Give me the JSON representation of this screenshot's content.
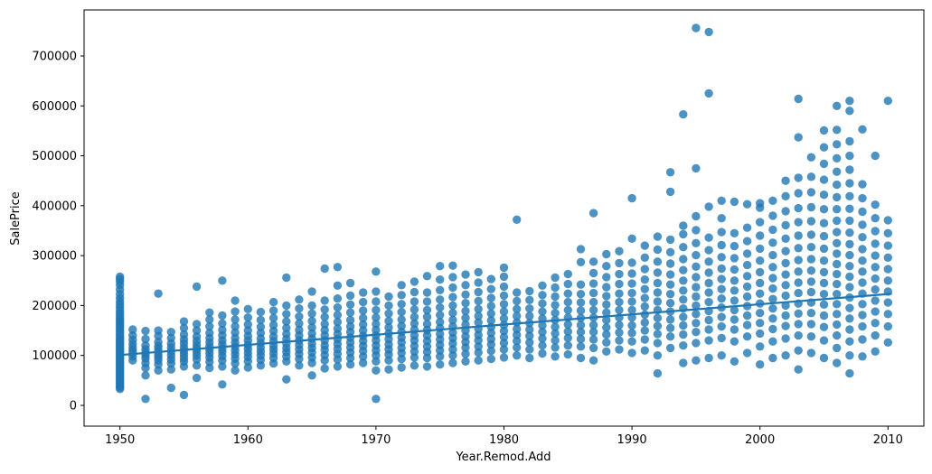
{
  "chart_data": {
    "type": "scatter",
    "xlabel": "Year.Remod.Add",
    "ylabel": "SalePrice",
    "x_ticks": [
      1950,
      1960,
      1970,
      1980,
      1990,
      2000,
      2010
    ],
    "y_ticks": [
      0,
      100000,
      200000,
      300000,
      400000,
      500000,
      600000,
      700000
    ],
    "x_lim": [
      1947.2,
      2012.8
    ],
    "y_lim": [
      -41600,
      792200
    ],
    "grid": false,
    "legend": "none",
    "marker_color": "#1f77b4",
    "marker_alpha": 0.8,
    "line_color": "#1f77b4",
    "y_scale": 1000,
    "regression_line": {
      "x1": 1950,
      "y1": 101000,
      "x2": 2010.3,
      "y2": 223500
    },
    "points_by_year": [
      {
        "year": 1950,
        "prices_k": [
          33,
          36,
          39,
          42,
          45,
          48,
          51,
          54,
          57,
          60,
          63,
          66,
          69,
          72,
          75,
          78,
          81,
          84,
          87,
          90,
          93,
          96,
          99,
          102,
          105,
          108,
          111,
          114,
          117,
          120,
          123,
          126,
          129,
          132,
          135,
          139,
          143,
          147,
          151,
          155,
          159,
          163,
          167,
          171,
          175,
          180,
          185,
          190,
          196,
          202,
          208,
          215,
          223,
          232,
          241,
          248,
          253,
          258
        ]
      },
      {
        "year": 1951,
        "prices_k": [
          90,
          98,
          105,
          110,
          116,
          123,
          131,
          140,
          152
        ]
      },
      {
        "year": 1952,
        "prices_k": [
          13,
          60,
          75,
          85,
          94,
          100,
          106,
          112,
          120,
          133,
          149
        ]
      },
      {
        "year": 1953,
        "prices_k": [
          70,
          82,
          90,
          96,
          101,
          107,
          113,
          119,
          127,
          139,
          150,
          224
        ]
      },
      {
        "year": 1954,
        "prices_k": [
          35,
          72,
          84,
          92,
          100,
          108,
          116,
          124,
          135,
          147
        ]
      },
      {
        "year": 1955,
        "prices_k": [
          21,
          78,
          88,
          95,
          102,
          109,
          116,
          124,
          132,
          142,
          155,
          168
        ]
      },
      {
        "year": 1956,
        "prices_k": [
          55,
          80,
          92,
          100,
          107,
          114,
          121,
          129,
          138,
          150,
          163,
          238
        ]
      },
      {
        "year": 1957,
        "prices_k": [
          75,
          87,
          96,
          104,
          111,
          118,
          126,
          135,
          145,
          158,
          172,
          186
        ]
      },
      {
        "year": 1958,
        "prices_k": [
          42,
          78,
          90,
          99,
          107,
          114,
          122,
          130,
          140,
          151,
          164,
          180,
          250
        ]
      },
      {
        "year": 1959,
        "prices_k": [
          70,
          84,
          94,
          102,
          110,
          118,
          126,
          135,
          146,
          158,
          172,
          188,
          210
        ]
      },
      {
        "year": 1960,
        "prices_k": [
          76,
          88,
          97,
          105,
          113,
          121,
          130,
          139,
          150,
          162,
          176,
          193
        ]
      },
      {
        "year": 1961,
        "prices_k": [
          80,
          91,
          100,
          108,
          116,
          125,
          134,
          145,
          157,
          171,
          187
        ]
      },
      {
        "year": 1962,
        "prices_k": [
          84,
          95,
          104,
          112,
          120,
          129,
          138,
          149,
          161,
          175,
          190,
          207
        ]
      },
      {
        "year": 1963,
        "prices_k": [
          52,
          88,
          98,
          107,
          115,
          124,
          133,
          143,
          155,
          168,
          183,
          200,
          256
        ]
      },
      {
        "year": 1964,
        "prices_k": [
          80,
          93,
          103,
          112,
          121,
          130,
          140,
          151,
          164,
          178,
          194,
          212
        ]
      },
      {
        "year": 1965,
        "prices_k": [
          60,
          85,
          96,
          106,
          115,
          124,
          134,
          144,
          156,
          169,
          184,
          200,
          228
        ]
      },
      {
        "year": 1966,
        "prices_k": [
          74,
          90,
          101,
          111,
          120,
          130,
          140,
          151,
          163,
          177,
          192,
          210,
          274
        ]
      },
      {
        "year": 1967,
        "prices_k": [
          78,
          92,
          103,
          113,
          123,
          133,
          143,
          154,
          167,
          181,
          196,
          214,
          240,
          277
        ]
      },
      {
        "year": 1968,
        "prices_k": [
          82,
          95,
          106,
          116,
          126,
          136,
          147,
          158,
          171,
          186,
          202,
          220,
          245
        ]
      },
      {
        "year": 1969,
        "prices_k": [
          85,
          98,
          109,
          119,
          129,
          139,
          150,
          162,
          175,
          190,
          207,
          226
        ]
      },
      {
        "year": 1970,
        "prices_k": [
          13,
          70,
          88,
          100,
          110,
          120,
          130,
          140,
          151,
          163,
          176,
          191,
          208,
          228,
          268
        ]
      },
      {
        "year": 1971,
        "prices_k": [
          72,
          90,
          102,
          112,
          122,
          133,
          144,
          156,
          169,
          184,
          200,
          218
        ]
      },
      {
        "year": 1972,
        "prices_k": [
          76,
          93,
          105,
          115,
          126,
          136,
          147,
          159,
          172,
          187,
          203,
          221,
          241
        ]
      },
      {
        "year": 1973,
        "prices_k": [
          80,
          96,
          108,
          119,
          130,
          140,
          152,
          164,
          177,
          192,
          208,
          227,
          248
        ]
      },
      {
        "year": 1974,
        "prices_k": [
          78,
          95,
          107,
          118,
          129,
          140,
          151,
          163,
          177,
          191,
          208,
          226,
          259
        ]
      },
      {
        "year": 1975,
        "prices_k": [
          82,
          98,
          110,
          121,
          132,
          143,
          155,
          167,
          181,
          196,
          212,
          231,
          252,
          279
        ]
      },
      {
        "year": 1976,
        "prices_k": [
          85,
          100,
          112,
          124,
          135,
          146,
          158,
          171,
          185,
          200,
          217,
          236,
          257,
          280
        ]
      },
      {
        "year": 1977,
        "prices_k": [
          88,
          103,
          116,
          127,
          138,
          150,
          162,
          175,
          189,
          205,
          222,
          241,
          262
        ]
      },
      {
        "year": 1978,
        "prices_k": [
          90,
          106,
          118,
          130,
          141,
          153,
          166,
          179,
          193,
          209,
          227,
          246,
          267
        ]
      },
      {
        "year": 1979,
        "prices_k": [
          93,
          109,
          122,
          133,
          145,
          157,
          170,
          184,
          199,
          215,
          233,
          253
        ]
      },
      {
        "year": 1980,
        "prices_k": [
          96,
          112,
          125,
          137,
          149,
          161,
          174,
          188,
          203,
          220,
          238,
          258,
          276
        ]
      },
      {
        "year": 1981,
        "prices_k": [
          100,
          116,
          129,
          141,
          153,
          166,
          179,
          193,
          209,
          226,
          372
        ]
      },
      {
        "year": 1982,
        "prices_k": [
          95,
          112,
          126,
          139,
          152,
          165,
          179,
          194,
          211,
          229
        ]
      },
      {
        "year": 1983,
        "prices_k": [
          104,
          120,
          134,
          147,
          160,
          174,
          188,
          204,
          221,
          240
        ]
      },
      {
        "year": 1984,
        "prices_k": [
          98,
          116,
          130,
          144,
          157,
          171,
          185,
          201,
          218,
          236,
          256
        ]
      },
      {
        "year": 1985,
        "prices_k": [
          102,
          120,
          135,
          148,
          162,
          176,
          191,
          207,
          224,
          243,
          263
        ]
      },
      {
        "year": 1986,
        "prices_k": [
          95,
          118,
          133,
          147,
          161,
          175,
          190,
          206,
          223,
          242,
          287,
          313
        ]
      },
      {
        "year": 1987,
        "prices_k": [
          90,
          115,
          132,
          147,
          161,
          176,
          191,
          207,
          225,
          244,
          265,
          288,
          385
        ]
      },
      {
        "year": 1988,
        "prices_k": [
          108,
          126,
          142,
          156,
          171,
          186,
          202,
          219,
          237,
          257,
          279,
          303
        ]
      },
      {
        "year": 1989,
        "prices_k": [
          112,
          130,
          146,
          161,
          176,
          191,
          207,
          224,
          243,
          263,
          285,
          309
        ]
      },
      {
        "year": 1990,
        "prices_k": [
          105,
          128,
          145,
          160,
          176,
          191,
          208,
          225,
          244,
          264,
          286,
          334,
          415
        ]
      },
      {
        "year": 1991,
        "prices_k": [
          110,
          132,
          150,
          166,
          182,
          198,
          215,
          233,
          252,
          273,
          296,
          320
        ]
      },
      {
        "year": 1992,
        "prices_k": [
          64,
          100,
          125,
          143,
          159,
          175,
          191,
          208,
          226,
          245,
          266,
          288,
          312,
          338
        ]
      },
      {
        "year": 1993,
        "prices_k": [
          115,
          138,
          155,
          172,
          188,
          205,
          223,
          242,
          262,
          284,
          307,
          332,
          428,
          467
        ]
      },
      {
        "year": 1994,
        "prices_k": [
          85,
          120,
          142,
          160,
          177,
          194,
          212,
          230,
          250,
          271,
          293,
          317,
          343,
          360,
          583
        ]
      },
      {
        "year": 1995,
        "prices_k": [
          90,
          125,
          147,
          165,
          183,
          200,
          218,
          237,
          257,
          278,
          301,
          325,
          351,
          379,
          475,
          756
        ]
      },
      {
        "year": 1996,
        "prices_k": [
          95,
          130,
          152,
          171,
          189,
          207,
          226,
          245,
          266,
          288,
          311,
          336,
          398,
          625,
          748
        ]
      },
      {
        "year": 1997,
        "prices_k": [
          100,
          135,
          158,
          177,
          196,
          214,
          233,
          253,
          274,
          297,
          321,
          347,
          375,
          410
        ]
      },
      {
        "year": 1998,
        "prices_k": [
          88,
          128,
          152,
          172,
          191,
          210,
          230,
          250,
          272,
          295,
          319,
          345,
          408
        ]
      },
      {
        "year": 1999,
        "prices_k": [
          105,
          138,
          161,
          180,
          199,
          218,
          238,
          259,
          281,
          304,
          329,
          356,
          403
        ]
      },
      {
        "year": 2000,
        "prices_k": [
          82,
          118,
          144,
          165,
          185,
          204,
          224,
          245,
          267,
          290,
          314,
          340,
          367,
          396,
          405
        ]
      },
      {
        "year": 2001,
        "prices_k": [
          95,
          128,
          153,
          174,
          194,
          213,
          234,
          255,
          277,
          301,
          326,
          352,
          380,
          410
        ]
      },
      {
        "year": 2002,
        "prices_k": [
          100,
          134,
          159,
          180,
          200,
          220,
          241,
          262,
          285,
          309,
          334,
          361,
          389,
          419,
          450
        ]
      },
      {
        "year": 2003,
        "prices_k": [
          72,
          110,
          140,
          163,
          184,
          204,
          225,
          246,
          268,
          291,
          315,
          340,
          367,
          395,
          425,
          456,
          537,
          614
        ]
      },
      {
        "year": 2004,
        "prices_k": [
          105,
          138,
          163,
          185,
          206,
          227,
          248,
          270,
          293,
          317,
          342,
          369,
          397,
          427,
          458,
          497
        ]
      },
      {
        "year": 2005,
        "prices_k": [
          95,
          130,
          157,
          180,
          202,
          223,
          245,
          267,
          290,
          314,
          339,
          365,
          393,
          422,
          452,
          484,
          517,
          551
        ]
      },
      {
        "year": 2006,
        "prices_k": [
          85,
          115,
          140,
          162,
          183,
          203,
          223,
          243,
          263,
          283,
          304,
          325,
          347,
          370,
          393,
          417,
          442,
          468,
          495,
          523,
          552,
          600
        ]
      },
      {
        "year": 2007,
        "prices_k": [
          64,
          100,
          128,
          152,
          174,
          195,
          216,
          237,
          258,
          279,
          301,
          323,
          346,
          370,
          394,
          419,
          445,
          472,
          500,
          529,
          590,
          610
        ]
      },
      {
        "year": 2008,
        "prices_k": [
          98,
          132,
          158,
          181,
          203,
          224,
          246,
          268,
          290,
          313,
          337,
          362,
          388,
          415,
          443,
          553
        ]
      },
      {
        "year": 2009,
        "prices_k": [
          108,
          140,
          165,
          188,
          210,
          232,
          254,
          277,
          300,
          324,
          349,
          375,
          402,
          500
        ]
      },
      {
        "year": 2010,
        "prices_k": [
          126,
          158,
          183,
          206,
          228,
          250,
          273,
          296,
          320,
          345,
          371,
          610
        ]
      }
    ]
  }
}
